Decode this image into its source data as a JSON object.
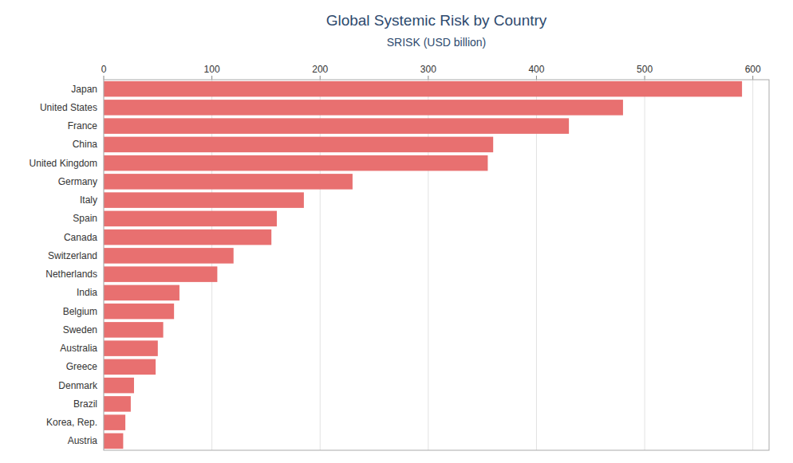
{
  "chart_data": {
    "type": "bar",
    "orientation": "horizontal",
    "title": "Global Systemic Risk by Country",
    "subtitle": "SRISK (USD billion)",
    "categories": [
      "Japan",
      "United States",
      "France",
      "China",
      "United Kingdom",
      "Germany",
      "Italy",
      "Spain",
      "Canada",
      "Switzerland",
      "Netherlands",
      "India",
      "Belgium",
      "Sweden",
      "Australia",
      "Greece",
      "Denmark",
      "Brazil",
      "Korea, Rep.",
      "Austria"
    ],
    "values": [
      590,
      480,
      430,
      360,
      355,
      230,
      185,
      160,
      155,
      120,
      105,
      70,
      65,
      55,
      50,
      48,
      28,
      25,
      20,
      18
    ],
    "color": "#e87070",
    "xlim": [
      0,
      615
    ],
    "xticks": [
      0,
      100,
      200,
      300,
      400,
      500,
      600
    ],
    "grid": true
  }
}
